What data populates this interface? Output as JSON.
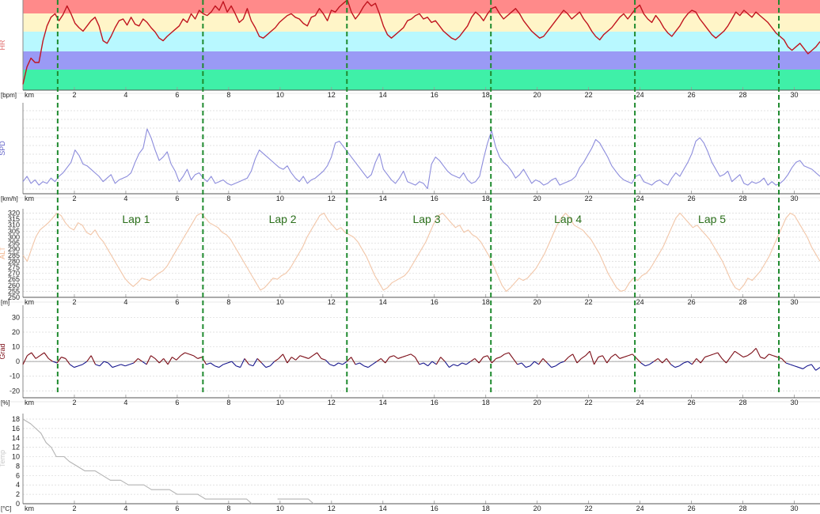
{
  "chart_data": {
    "type": "line",
    "laps": {
      "boundaries_km": [
        1.35,
        7.0,
        12.6,
        18.2,
        23.8,
        29.4
      ],
      "labels": [
        {
          "text": "Lap 1",
          "km": 4.4
        },
        {
          "text": "Lap 2",
          "km": 10.1
        },
        {
          "text": "Lap 3",
          "km": 15.7
        },
        {
          "text": "Lap 4",
          "km": 21.2
        },
        {
          "text": "Lap 5",
          "km": 26.8
        }
      ],
      "line_color": "#1e8a2e"
    },
    "x_axis": {
      "unit_label": "km",
      "ticks": [
        "2",
        "4",
        "6",
        "8",
        "10",
        "12",
        "14",
        "16",
        "18",
        "20",
        "22",
        "24",
        "26",
        "28",
        "30"
      ],
      "range": [
        0.0,
        31.0
      ]
    },
    "panels": [
      {
        "id": "hr",
        "channel_label": "HR",
        "unit_label": "[bpm]",
        "color": "#c0141e",
        "label_color": "#e07070",
        "zones": [
          {
            "color": "#ff8a8a"
          },
          {
            "color": "#fff5c8"
          },
          {
            "color": "#b8f8ff"
          },
          {
            "color": "#9a9af5"
          },
          {
            "color": "#3ff0a8"
          }
        ],
        "grid": false,
        "series": [
          {
            "values": [
              5,
              25,
              35,
              30,
              30,
              55,
              72,
              82,
              86,
              78,
              85,
              95,
              86,
              75,
              70,
              66,
              72,
              78,
              82,
              72,
              55,
              52,
              60,
              70,
              78,
              80,
              73,
              82,
              74,
              72,
              80,
              76,
              70,
              65,
              58,
              55,
              60,
              64,
              68,
              72,
              80,
              76,
              86,
              80,
              90,
              86,
              84,
              88,
              95,
              90,
              100,
              88,
              95,
              86,
              76,
              80,
              92,
              78,
              70,
              60,
              58,
              62,
              66,
              70,
              76,
              80,
              84,
              86,
              82,
              80,
              75,
              72,
              82,
              84,
              92,
              86,
              78,
              90,
              88,
              94,
              98,
              102,
              88,
              80,
              86,
              94,
              100,
              95,
              98,
              86,
              72,
              62,
              58,
              62,
              66,
              70,
              78,
              80,
              84,
              86,
              80,
              82,
              76,
              78,
              72,
              66,
              62,
              58,
              56,
              60,
              66,
              72,
              82,
              88,
              84,
              78,
              86,
              92,
              94,
              86,
              80,
              84,
              88,
              92,
              86,
              78,
              72,
              66,
              62,
              58,
              60,
              66,
              72,
              78,
              84,
              90,
              86,
              80,
              84,
              88,
              80,
              74,
              66,
              60,
              56,
              62,
              66,
              70,
              76,
              82,
              86,
              80,
              86,
              92,
              96,
              86,
              80,
              76,
              84,
              78,
              70,
              64,
              60,
              66,
              72,
              80,
              86,
              90,
              88,
              80,
              74,
              68,
              62,
              58,
              62,
              66,
              72,
              80,
              88,
              84,
              90,
              86,
              82,
              88,
              84,
              80,
              76,
              70,
              64,
              60,
              56,
              48,
              44,
              48,
              52,
              46,
              40,
              44,
              48,
              54
            ]
          }
        ]
      },
      {
        "id": "spd",
        "channel_label": "SPD",
        "unit_label": "[km/h]",
        "color": "#8c8cdc",
        "label_color": "#6464c8",
        "grid": true,
        "series": [
          {
            "values": [
              12,
              18,
              10,
              14,
              8,
              12,
              10,
              16,
              12,
              18,
              22,
              28,
              34,
              48,
              42,
              32,
              30,
              26,
              22,
              18,
              12,
              16,
              20,
              10,
              14,
              16,
              18,
              22,
              34,
              44,
              50,
              72,
              62,
              48,
              36,
              40,
              46,
              32,
              24,
              12,
              18,
              26,
              14,
              20,
              22,
              16,
              12,
              18,
              10,
              12,
              14,
              10,
              8,
              10,
              12,
              14,
              16,
              24,
              38,
              48,
              44,
              40,
              36,
              32,
              28,
              26,
              30,
              22,
              16,
              12,
              18,
              10,
              14,
              16,
              20,
              24,
              30,
              40,
              56,
              58,
              52,
              46,
              40,
              34,
              28,
              22,
              16,
              20,
              34,
              44,
              26,
              20,
              14,
              10,
              16,
              24,
              12,
              10,
              8,
              12,
              10,
              4,
              32,
              40,
              36,
              30,
              24,
              20,
              18,
              16,
              22,
              14,
              10,
              12,
              18,
              38,
              56,
              70,
              52,
              40,
              34,
              30,
              24,
              16,
              20,
              26,
              18,
              10,
              14,
              12,
              8,
              10,
              14,
              16,
              8,
              10,
              12,
              14,
              18,
              28,
              34,
              42,
              50,
              60,
              56,
              48,
              40,
              30,
              24,
              18,
              14,
              12,
              10,
              18,
              20,
              12,
              10,
              8,
              12,
              14,
              10,
              8,
              16,
              22,
              18,
              26,
              34,
              44,
              58,
              62,
              56,
              46,
              34,
              26,
              18,
              20,
              24,
              12,
              16,
              20,
              10,
              8,
              12,
              10,
              12,
              16,
              8,
              12,
              8,
              10,
              14,
              20,
              28,
              34,
              36,
              30,
              28,
              26,
              22,
              18
            ]
          }
        ]
      },
      {
        "id": "alt",
        "channel_label": "ALT",
        "unit_label": "[m]",
        "color": "#f2c6a8",
        "label_color": "#f0b48c",
        "grid": true,
        "y_ticks": [
          "250",
          "255",
          "260",
          "265",
          "270",
          "275",
          "280",
          "285",
          "290",
          "295",
          "300",
          "305",
          "310",
          "315",
          "320"
        ],
        "y_range": [
          250,
          321
        ],
        "series": [
          {
            "values": [
              285,
              280,
              290,
              300,
              306,
              309,
              312,
              316,
              320,
              318,
              312,
              308,
              306,
              312,
              310,
              304,
              302,
              306,
              300,
              296,
              290,
              284,
              278,
              272,
              266,
              262,
              259,
              262,
              266,
              265,
              264,
              267,
              270,
              272,
              276,
              282,
              288,
              294,
              300,
              306,
              312,
              318,
              320,
              316,
              312,
              310,
              308,
              304,
              302,
              298,
              292,
              286,
              280,
              274,
              268,
              262,
              256,
              258,
              262,
              266,
              265,
              268,
              270,
              274,
              280,
              286,
              292,
              300,
              306,
              312,
              318,
              320,
              314,
              310,
              306,
              308,
              304,
              302,
              300,
              296,
              290,
              284,
              276,
              268,
              262,
              256,
              258,
              262,
              264,
              266,
              268,
              272,
              278,
              284,
              290,
              296,
              304,
              312,
              318,
              320,
              316,
              312,
              308,
              310,
              304,
              306,
              302,
              300,
              296,
              290,
              284,
              276,
              268,
              260,
              255,
              258,
              262,
              266,
              264,
              266,
              270,
              274,
              280,
              286,
              294,
              302,
              310,
              316,
              320,
              316,
              310,
              308,
              306,
              302,
              298,
              292,
              286,
              278,
              270,
              264,
              258,
              255,
              256,
              262,
              266,
              264,
              268,
              270,
              274,
              280,
              286,
              292,
              300,
              308,
              316,
              320,
              316,
              312,
              308,
              310,
              306,
              302,
              298,
              292,
              286,
              280,
              272,
              264,
              258,
              256,
              260,
              266,
              264,
              268,
              272,
              278,
              284,
              292,
              300,
              308,
              316,
              320,
              318,
              312,
              306,
              300,
              292,
              286,
              280
            ]
          }
        ]
      },
      {
        "id": "grad",
        "channel_label": "Grad",
        "unit_label": "[%]",
        "color": "#7a0a14",
        "secondary_color": "#14148c",
        "label_color": "#7a0a14",
        "grid": true,
        "y_ticks": [
          "-20",
          "-10",
          "0",
          "10",
          "20",
          "30"
        ],
        "y_range": [
          -22,
          34
        ],
        "series": [
          {
            "values": [
              -2,
              4,
              6,
              2,
              4,
              6,
              2,
              0,
              -1,
              3,
              2,
              -2,
              -4,
              -3,
              -2,
              0,
              4,
              -2,
              -3,
              0,
              -1,
              -4,
              -3,
              -2,
              -3,
              -2,
              -1,
              2,
              0,
              -2,
              4,
              2,
              -1,
              2,
              -2,
              3,
              1,
              4,
              6,
              5,
              4,
              2,
              3,
              -2,
              -1,
              -3,
              -4,
              -2,
              -1,
              0,
              -3,
              -4,
              2,
              -2,
              -3,
              2,
              -1,
              -4,
              -3,
              0,
              2,
              5,
              -1,
              3,
              1,
              4,
              3,
              2,
              4,
              6,
              2,
              1,
              -2,
              -3,
              -1,
              -2,
              0,
              3,
              -2,
              -1,
              -3,
              -4,
              -2,
              0,
              2,
              -1,
              3,
              4,
              2,
              3,
              4,
              5,
              3,
              -2,
              -1,
              -3,
              0,
              -2,
              3,
              0,
              -4,
              -2,
              -3,
              -1,
              -2,
              0,
              2,
              -1,
              3,
              4,
              -1,
              2,
              3,
              5,
              6,
              2,
              -2,
              -1,
              -4,
              -3,
              0,
              -2,
              2,
              -1,
              -4,
              -3,
              -1,
              0,
              3,
              5,
              -1,
              2,
              4,
              7,
              -2,
              3,
              4,
              -1,
              3,
              5,
              2,
              3,
              4,
              5,
              2,
              -1,
              -3,
              -2,
              0,
              2,
              -1,
              2,
              -2,
              -4,
              -3,
              -1,
              0,
              -2,
              2,
              -1,
              3,
              4,
              5,
              6,
              2,
              -1,
              3,
              7,
              5,
              3,
              4,
              6,
              9,
              3,
              2,
              5,
              4,
              3,
              2,
              -1,
              -2,
              -3,
              -4,
              -5,
              -3,
              -2,
              -6,
              -4
            ]
          }
        ]
      },
      {
        "id": "temp",
        "channel_label": "Temp",
        "unit_label": "[°C]",
        "color": "#b4b4b4",
        "label_color": "#c8c8c8",
        "grid": true,
        "y_ticks": [
          "0",
          "2",
          "4",
          "6",
          "8",
          "10",
          "12",
          "14",
          "16",
          "18"
        ],
        "y_range": [
          0,
          18.5
        ],
        "series": [
          {
            "points": [
              [
                0.0,
                18
              ],
              [
                0.3,
                17
              ],
              [
                0.5,
                16
              ],
              [
                0.7,
                15
              ],
              [
                0.9,
                13
              ],
              [
                1.1,
                12
              ],
              [
                1.3,
                10
              ],
              [
                1.6,
                10
              ],
              [
                1.8,
                9
              ],
              [
                2.1,
                8
              ],
              [
                2.4,
                7
              ],
              [
                2.8,
                7
              ],
              [
                3.1,
                6
              ],
              [
                3.4,
                5
              ],
              [
                3.8,
                5
              ],
              [
                4.1,
                4
              ],
              [
                4.7,
                4
              ],
              [
                5.0,
                3
              ],
              [
                5.7,
                3
              ],
              [
                6.0,
                2
              ],
              [
                6.8,
                2
              ],
              [
                7.1,
                1
              ],
              [
                8.7,
                1
              ],
              [
                8.9,
                0
              ],
              [
                9.0,
                null
              ],
              [
                9.8,
                null
              ],
              [
                9.9,
                1
              ],
              [
                11.1,
                1
              ],
              [
                11.3,
                0
              ]
            ]
          }
        ]
      }
    ]
  }
}
